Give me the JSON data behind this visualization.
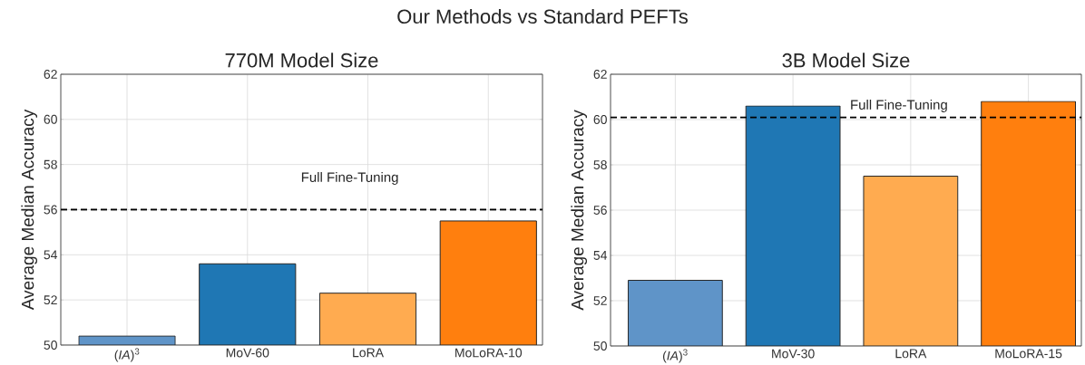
{
  "chart_data": [
    {
      "type": "bar",
      "title": "Our Methods vs Standard PEFTs",
      "subtitle": "770M Model Size",
      "ylabel": "Average Median Accuracy",
      "categories": [
        "(*IA*)$^{3}$",
        "MoV-60",
        "LoRA",
        "MoLoRA-10"
      ],
      "values": [
        50.4,
        53.6,
        52.3,
        55.5
      ],
      "colors": [
        "#5f94c8",
        "#1f77b4",
        "#ffab50",
        "#ff7f0e"
      ],
      "ylim": [
        50,
        62
      ],
      "yticks": [
        50,
        52,
        54,
        56,
        58,
        60,
        62
      ],
      "grid": true,
      "ref_lines": [
        {
          "axis": "y",
          "value": 56,
          "label": "Full Fine-Tuning",
          "color": "#000000",
          "line_style": "dashed"
        }
      ]
    },
    {
      "type": "bar",
      "title": "3B Model Size",
      "ylabel": "Average Median Accuracy",
      "categories": [
        "(*IA*)$^{3}$",
        "MoV-30",
        "LoRA",
        "MoLoRA-15"
      ],
      "values": [
        52.9,
        60.6,
        57.5,
        60.8
      ],
      "colors": [
        "#5f94c8",
        "#1f77b4",
        "#ffab50",
        "#ff7f0e"
      ],
      "ylim": [
        50,
        62
      ],
      "yticks": [
        50,
        52,
        54,
        56,
        58,
        60,
        62
      ],
      "grid": true,
      "ref_lines": [
        {
          "axis": "y",
          "value": 60.1,
          "label": "Full Fine-Tuning",
          "color": "#000000",
          "line_style": "dashed"
        }
      ]
    }
  ]
}
